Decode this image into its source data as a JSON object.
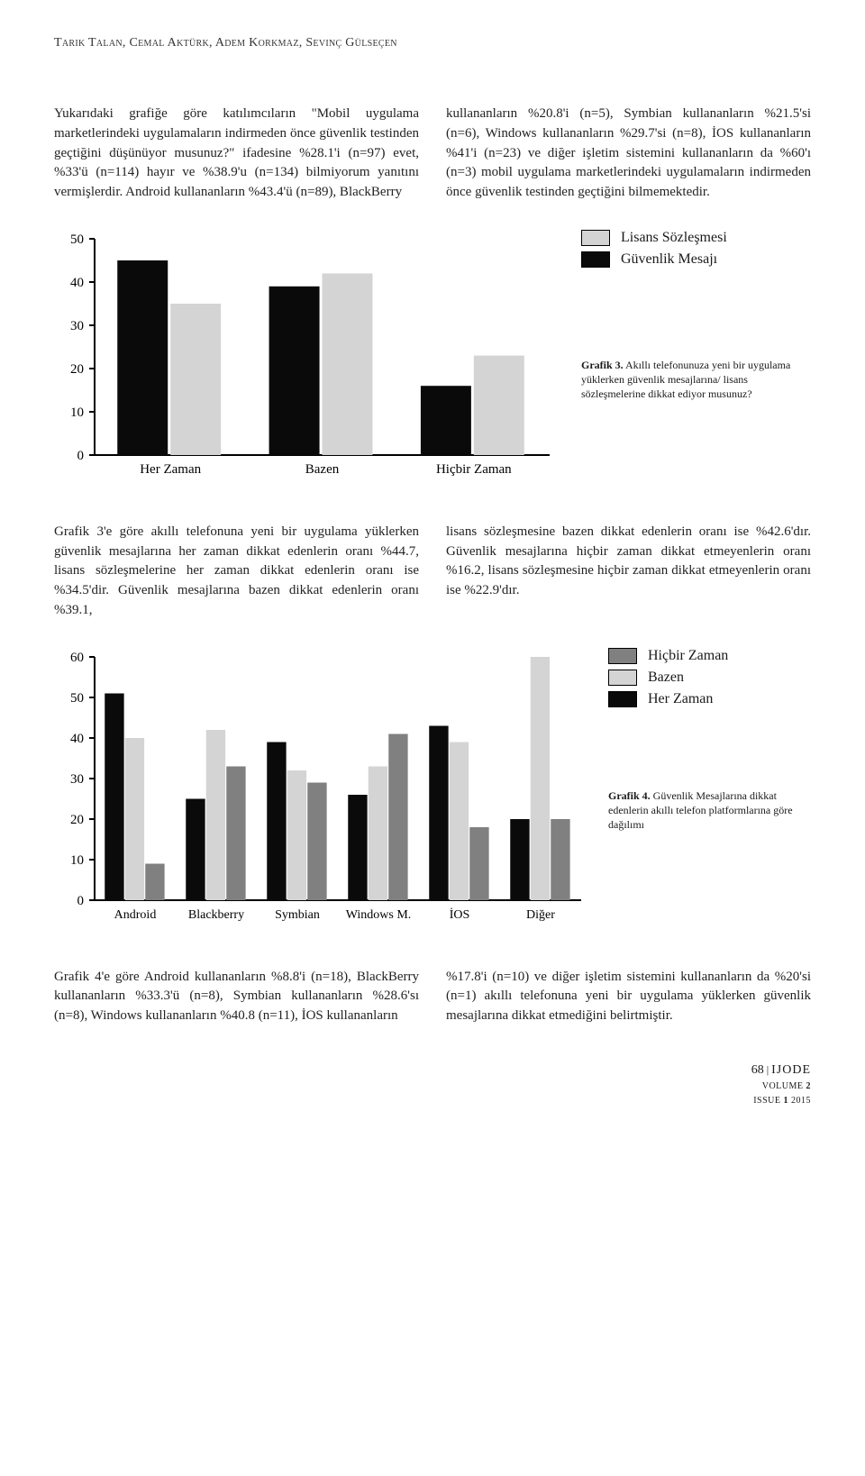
{
  "authors": "Tarık Talan, Cemal Aktürk, Adem Korkmaz, Sevinç Gülseçen",
  "para1_left": "Yukarıdaki grafiğe göre katılımcıların \"Mobil uygulama marketlerindeki uygulamaların indirmeden önce güvenlik testinden geçtiğini düşünüyor musunuz?\" ifadesine %28.1'i (n=97) evet, %33'ü (n=114) hayır ve %38.9'u (n=134) bilmiyorum yanıtını vermişlerdir. Android kullananların %43.4'ü (n=89), BlackBerry",
  "para1_right": "kullananların %20.8'i (n=5), Symbian kullananların %21.5'si (n=6), Windows kullananların %29.7'si (n=8), İOS kullananların %41'i (n=23) ve diğer işletim sistemini kullananların da %60'ı (n=3) mobil uygulama marketlerindeki uygulamaların indirmeden önce güvenlik testinden geçtiğini bilmemektedir.",
  "chart3": {
    "type": "bar",
    "categories": [
      "Her Zaman",
      "Bazen",
      "Hiçbir Zaman"
    ],
    "series": [
      {
        "name": "Güvenlik Mesajı",
        "color": "#0a0a0a",
        "values": [
          45,
          39,
          16
        ]
      },
      {
        "name": "Lisans Sözleşmesi",
        "color": "#d4d4d4",
        "values": [
          35,
          42,
          23
        ]
      }
    ],
    "ylim": [
      0,
      50
    ],
    "ytick_step": 10,
    "yticks": [
      0,
      10,
      20,
      30,
      40,
      50
    ],
    "axis_color": "#000000",
    "label_fontsize": 15,
    "tick_fontsize": 15,
    "bar_group_width": 0.7,
    "legend_items": [
      {
        "label": "Lisans Sözleşmesi",
        "color": "#d4d4d4"
      },
      {
        "label": "Güvenlik Mesajı",
        "color": "#0a0a0a"
      }
    ],
    "caption_bold": "Grafik 3.",
    "caption_rest": " Akıllı telefonunuza yeni bir uygulama yüklerken güvenlik mesajlarına/ lisans sözleşmelerine dikkat ediyor musunuz?"
  },
  "para2_left": "Grafik 3'e göre akıllı telefonuna yeni bir uygulama yüklerken güvenlik mesajlarına her zaman dikkat edenlerin oranı %44.7, lisans sözleşmelerine her zaman dikkat edenlerin oranı ise %34.5'dir. Güvenlik mesajlarına bazen dikkat edenlerin oranı %39.1,",
  "para2_right": "lisans sözleşmesine bazen dikkat edenlerin oranı ise %42.6'dır. Güvenlik mesajlarına hiçbir zaman dikkat etmeyenlerin oranı %16.2, lisans sözleşmesine hiçbir zaman dikkat etmeyenlerin oranı ise %22.9'dır.",
  "chart4": {
    "type": "bar",
    "categories": [
      "Android",
      "Blackberry",
      "Symbian",
      "Windows M.",
      "İOS",
      "Diğer"
    ],
    "series": [
      {
        "name": "Her Zaman",
        "color": "#0a0a0a",
        "values": [
          51,
          25,
          39,
          26,
          43,
          20
        ]
      },
      {
        "name": "Bazen",
        "color": "#d4d4d4",
        "values": [
          40,
          42,
          32,
          33,
          39,
          60
        ]
      },
      {
        "name": "Hiçbir Zaman",
        "color": "#808080",
        "values": [
          9,
          33,
          29,
          41,
          18,
          20
        ]
      }
    ],
    "ylim": [
      0,
      60
    ],
    "ytick_step": 10,
    "yticks": [
      0,
      10,
      20,
      30,
      40,
      50,
      60
    ],
    "axis_color": "#000000",
    "label_fontsize": 14,
    "tick_fontsize": 15,
    "bar_group_width": 0.75,
    "legend_items": [
      {
        "label": "Hiçbir Zaman",
        "color": "#808080"
      },
      {
        "label": "Bazen",
        "color": "#d4d4d4"
      },
      {
        "label": "Her Zaman",
        "color": "#0a0a0a"
      }
    ],
    "caption_bold": "Grafik 4.",
    "caption_rest": " Güvenlik Mesajlarına dikkat edenlerin akıllı telefon platformlarına göre dağılımı"
  },
  "para3_left": "Grafik 4'e göre Android kullananların %8.8'i (n=18), BlackBerry kullananların %33.3'ü (n=8), Symbian kullananların %28.6'sı (n=8), Windows kullananların %40.8 (n=11), İOS kullananların",
  "para3_right": "%17.8'i (n=10) ve diğer işletim sistemini kullananların da %20'si (n=1) akıllı telefonuna yeni bir uygulama yüklerken güvenlik mesajlarına dikkat etmediğini belirtmiştir.",
  "footer": {
    "page": "68",
    "journal": "IJODE",
    "volume_label": "volume",
    "volume": "2",
    "issue_label": "issue",
    "issue": "1",
    "year": "2015"
  }
}
